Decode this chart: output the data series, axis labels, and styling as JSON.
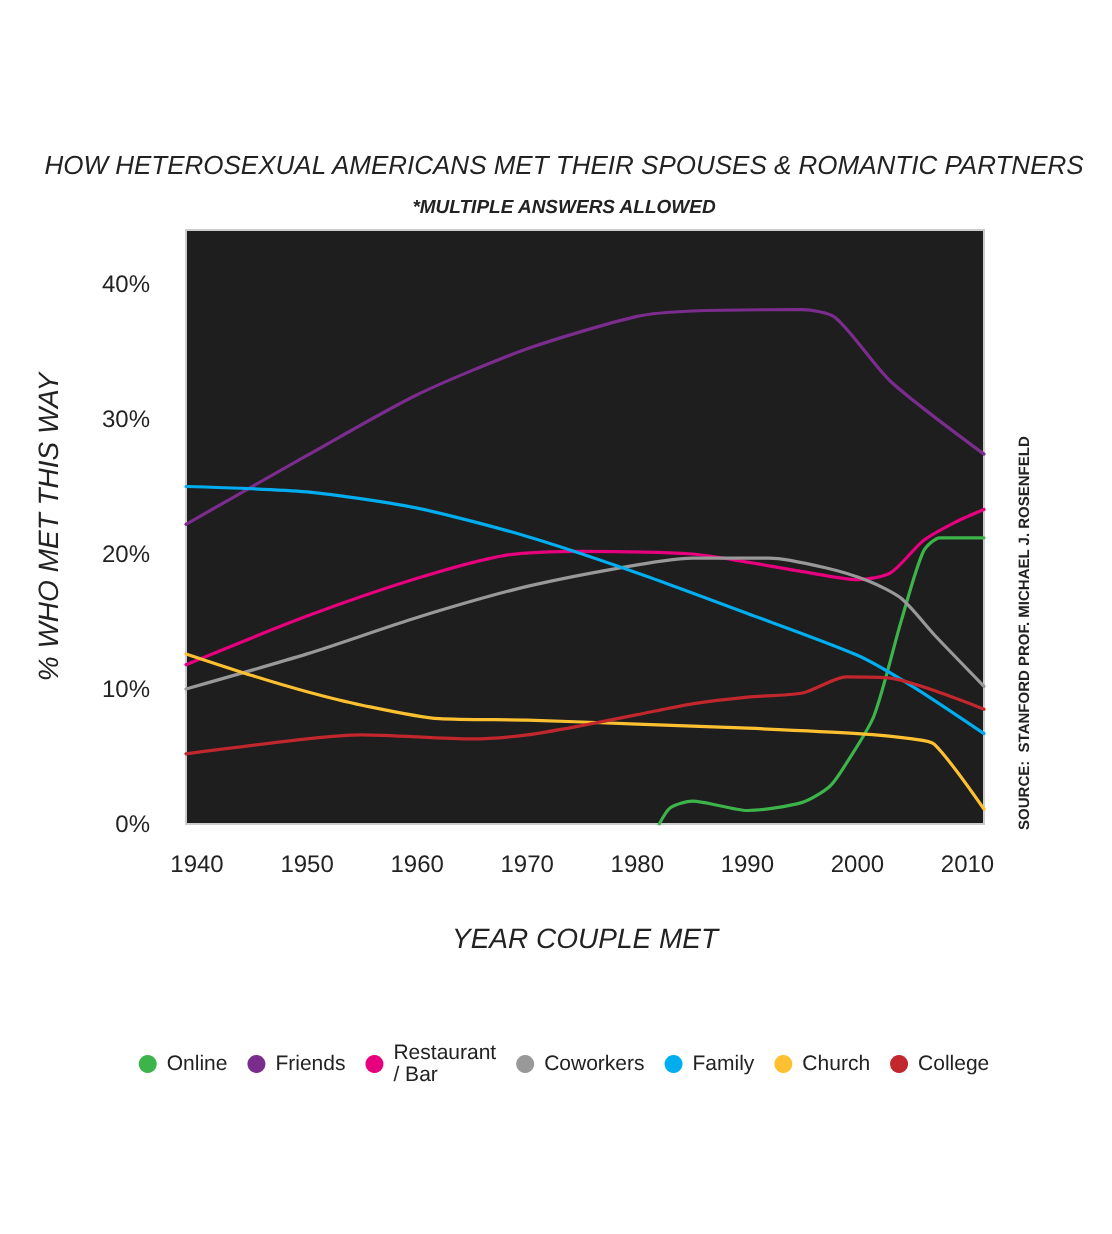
{
  "chart_data": {
    "type": "line",
    "title": "HOW HETEROSEXUAL AMERICANS MET THEIR SPOUSES & ROMANTIC PARTNERS",
    "subtitle": "*MULTIPLE ANSWERS ALLOWED",
    "xlabel": "YEAR COUPLE MET",
    "ylabel": "% WHO MET THIS WAY",
    "annotations": [
      "SOURCE:  STANFORD PROF. MICHAEL J. ROSENFELD"
    ],
    "xlim": [
      1939,
      2011.5
    ],
    "xticks": [
      1940,
      1950,
      1960,
      1970,
      1980,
      1990,
      2000,
      2010
    ],
    "ylim": [
      0,
      44
    ],
    "yticks": [
      {
        "value": 0,
        "label": "0%"
      },
      {
        "value": 10,
        "label": "10%"
      },
      {
        "value": 20,
        "label": "20%"
      },
      {
        "value": 30,
        "label": "30%"
      },
      {
        "value": 40,
        "label": "40%"
      }
    ],
    "grid": false,
    "legend": "bottom",
    "marker": "none",
    "line_style": "solid",
    "series": [
      {
        "name": "Online",
        "color": "#3cb44a",
        "x": [
          1982,
          1983,
          1985,
          1990,
          1995,
          1997.5,
          1999,
          2001.5,
          2004,
          2006,
          2007.5,
          2011.5
        ],
        "values": [
          0,
          1.2,
          1.7,
          1.0,
          1.6,
          2.8,
          4.5,
          8.0,
          15.1,
          20.2,
          21.2,
          21.2
        ]
      },
      {
        "name": "Friends",
        "color": "#7b2d8e",
        "x": [
          1939,
          1950,
          1960,
          1970,
          1980,
          1985,
          1995,
          1998,
          2003,
          2011.5
        ],
        "values": [
          22.2,
          27.3,
          31.8,
          35.2,
          37.6,
          38.0,
          38.1,
          37.5,
          32.8,
          27.4
        ]
      },
      {
        "name": "Restaurant\n/ Bar",
        "color": "#e6007e",
        "x": [
          1939,
          1950,
          1960,
          1968,
          1975,
          1985,
          1990,
          1995,
          2000,
          2003,
          2006,
          2009,
          2011.5
        ],
        "values": [
          11.8,
          15.4,
          18.2,
          19.9,
          20.2,
          20.0,
          19.4,
          18.7,
          18.1,
          18.6,
          21.0,
          22.4,
          23.3
        ]
      },
      {
        "name": "Coworkers",
        "color": "#999999",
        "x": [
          1939,
          1950,
          1960,
          1970,
          1980,
          1985,
          1992,
          1997,
          2001,
          2004,
          2007,
          2011.5
        ],
        "values": [
          10.0,
          12.6,
          15.3,
          17.6,
          19.2,
          19.7,
          19.7,
          19.0,
          18.0,
          16.7,
          14.0,
          10.2
        ]
      },
      {
        "name": "Family",
        "color": "#00aeef",
        "x": [
          1939,
          1950,
          1960,
          1970,
          1980,
          1990,
          2000,
          2005,
          2011.5
        ],
        "values": [
          25.0,
          24.6,
          23.4,
          21.3,
          18.6,
          15.6,
          12.5,
          10.2,
          6.7
        ]
      },
      {
        "name": "Church",
        "color": "#fdc030",
        "x": [
          1939,
          1945,
          1950,
          1955,
          1962,
          1970,
          1980,
          1990,
          2000,
          2005,
          2007,
          2011.5
        ],
        "values": [
          12.6,
          11.0,
          9.8,
          8.8,
          7.8,
          7.7,
          7.4,
          7.1,
          6.7,
          6.3,
          5.9,
          1.1
        ]
      },
      {
        "name": "College",
        "color": "#c1272d",
        "x": [
          1939,
          1950,
          1955,
          1965,
          1970,
          1975,
          1980,
          1985,
          1990,
          1995,
          1999,
          2003,
          2011.5
        ],
        "values": [
          5.2,
          6.3,
          6.6,
          6.3,
          6.6,
          7.3,
          8.1,
          8.9,
          9.4,
          9.7,
          10.9,
          10.8,
          8.5
        ]
      }
    ]
  }
}
